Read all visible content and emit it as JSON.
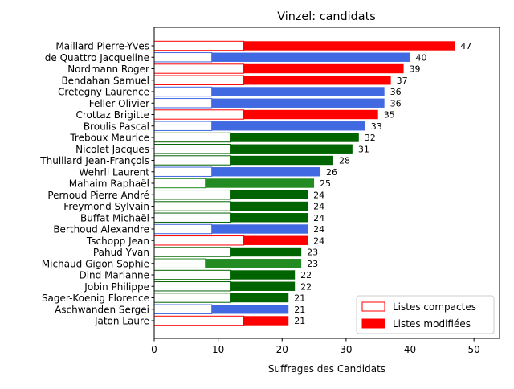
{
  "chart_data": {
    "type": "bar",
    "orientation": "horizontal",
    "stacked": true,
    "title": "Vinzel: candidats",
    "xlabel": "Suffrages des Candidats",
    "ylabel": "",
    "xlim": [
      0,
      54
    ],
    "xticks": [
      "0",
      "10",
      "20",
      "30",
      "40",
      "50"
    ],
    "legend_position": "lower right",
    "grid": false,
    "legend": [
      {
        "label": "Listes compactes",
        "style": "outline",
        "color": "#ff0000"
      },
      {
        "label": "Listes modifiées",
        "style": "filled",
        "color": "#ff0000"
      }
    ],
    "series": [
      {
        "name": "Listes compactes",
        "values": [
          14,
          9,
          14,
          14,
          9,
          9,
          14,
          9,
          12,
          12,
          12,
          9,
          8,
          12,
          12,
          12,
          9,
          14,
          12,
          8,
          12,
          12,
          12,
          9,
          14
        ]
      },
      {
        "name": "Listes modifiées",
        "values": [
          33,
          31,
          25,
          23,
          27,
          27,
          21,
          24,
          20,
          19,
          16,
          17,
          17,
          12,
          12,
          12,
          15,
          10,
          11,
          15,
          10,
          10,
          9,
          12,
          7
        ]
      }
    ],
    "categories": [
      "Maillard Pierre-Yves",
      "de Quattro Jacqueline",
      "Nordmann Roger",
      "Bendahan Samuel",
      "Cretegny Laurence",
      "Feller Olivier",
      "Crottaz Brigitte",
      "Broulis Pascal",
      "Treboux Maurice",
      "Nicolet Jacques",
      "Thuillard Jean-François",
      "Wehrli Laurent",
      "Mahaim Raphaël",
      "Pernoud Pierre André",
      "Freymond Sylvain",
      "Buffat Michaël",
      "Berthoud Alexandre",
      "Tschopp Jean",
      "Pahud Yvan",
      "Michaud Gigon Sophie",
      "Dind Marianne",
      "Jobin Philippe",
      "Sager-Koenig Florence",
      "Aschwanden Sergei",
      "Jaton Laure"
    ],
    "totals": [
      47,
      40,
      39,
      37,
      36,
      36,
      35,
      33,
      32,
      31,
      28,
      26,
      25,
      24,
      24,
      24,
      24,
      24,
      23,
      23,
      22,
      22,
      21,
      21,
      21
    ],
    "colors": [
      "#ff0000",
      "#4169e1",
      "#ff0000",
      "#ff0000",
      "#4169e1",
      "#4169e1",
      "#ff0000",
      "#4169e1",
      "#006400",
      "#006400",
      "#006400",
      "#4169e1",
      "#228b22",
      "#006400",
      "#006400",
      "#006400",
      "#4169e1",
      "#ff0000",
      "#006400",
      "#228b22",
      "#006400",
      "#006400",
      "#006400",
      "#4169e1",
      "#ff0000"
    ]
  }
}
